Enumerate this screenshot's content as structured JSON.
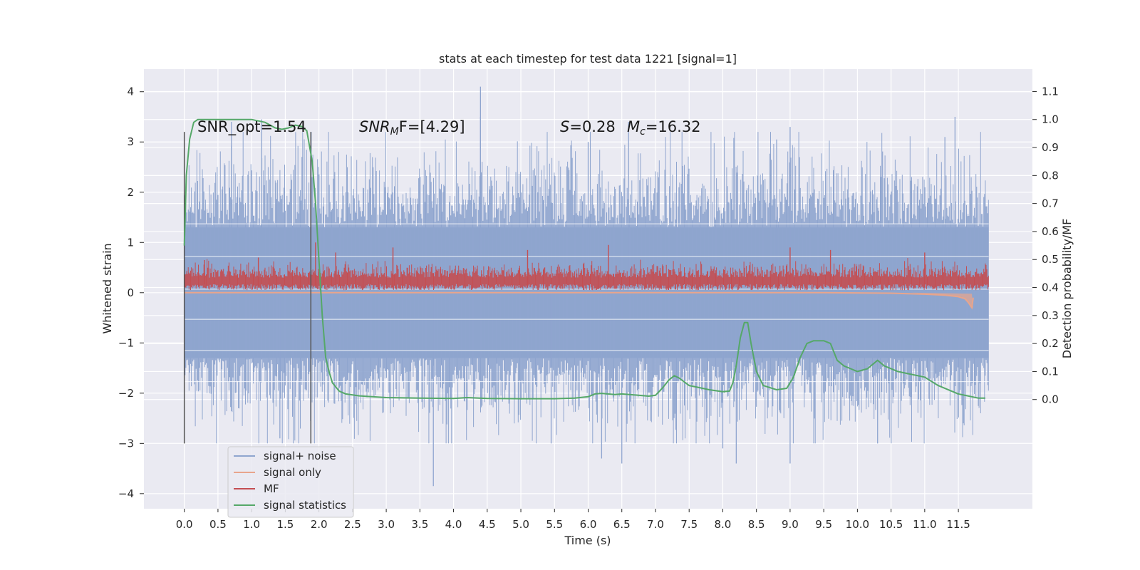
{
  "chart_data": {
    "type": "line",
    "title": "stats at each timestep for test data 1221 [signal=1]",
    "xlabel": "Time (s)",
    "ylabel": "Whitened strain",
    "y2label": "Detection probability/MF",
    "xlim": [
      -0.6,
      12.6
    ],
    "ylim": [
      -4.3,
      4.45
    ],
    "y2lim": [
      -0.39,
      1.18
    ],
    "xticks": [
      0.0,
      0.5,
      1.0,
      1.5,
      2.0,
      2.5,
      3.0,
      3.5,
      4.0,
      4.5,
      5.0,
      5.5,
      6.0,
      6.5,
      7.0,
      7.5,
      8.0,
      8.5,
      9.0,
      9.5,
      10.0,
      10.5,
      11.0,
      11.5
    ],
    "xtick_labels": [
      "0.0",
      "0.5",
      "1.0",
      "1.5",
      "2.0",
      "2.5",
      "3.0",
      "3.5",
      "4.0",
      "4.5",
      "5.0",
      "5.5",
      "6.0",
      "6.5",
      "7.0",
      "7.5",
      "8.0",
      "8.5",
      "9.0",
      "9.5",
      "10.0",
      "10.5",
      "11.0",
      "11.5"
    ],
    "yticks": [
      -4,
      -3,
      -2,
      -1,
      0,
      1,
      2,
      3,
      4
    ],
    "ytick_labels": [
      "−4",
      "−3",
      "−2",
      "−1",
      "0",
      "1",
      "2",
      "3",
      "4"
    ],
    "y2ticks": [
      0.0,
      0.1,
      0.2,
      0.3,
      0.4,
      0.5,
      0.6,
      0.7,
      0.8,
      0.9,
      1.0,
      1.1
    ],
    "y2tick_labels": [
      "0.0",
      "0.1",
      "0.2",
      "0.3",
      "0.4",
      "0.5",
      "0.6",
      "0.7",
      "0.8",
      "0.9",
      "1.0",
      "1.1"
    ],
    "grid": true,
    "legend_placement": "lower-left",
    "annotations": {
      "snr_opt": "SNR_opt=1.54",
      "snr_mf_main": "SNR",
      "snr_mf_sub": "M",
      "snr_mf_rest": "F=[4.29]",
      "s_main": "S",
      "s_rest": "=0.28",
      "mc_main": "M",
      "mc_sub": "c",
      "mc_rest": "=16.32"
    },
    "vlines": [
      0.0,
      1.88
    ],
    "vline_range": [
      -3.0,
      3.2
    ],
    "series": [
      {
        "name": "signal+ noise",
        "color": "#8fa5cf",
        "axis": "left",
        "x_range": [
          0.0,
          11.95
        ],
        "band_typical": [
          -1.3,
          1.3
        ],
        "band_frequent": [
          -2.3,
          2.3
        ],
        "spikes": [
          [
            0.7,
            3.4
          ],
          [
            1.15,
            3.45
          ],
          [
            1.42,
            -2.9
          ],
          [
            3.7,
            -3.85
          ],
          [
            4.4,
            4.1
          ],
          [
            4.4,
            3.5
          ],
          [
            5.45,
            -3.0
          ],
          [
            6.0,
            3.0
          ],
          [
            6.2,
            -3.3
          ],
          [
            6.5,
            -3.4
          ],
          [
            6.6,
            3.4
          ],
          [
            8.0,
            -3.1
          ],
          [
            8.2,
            -3.4
          ],
          [
            8.8,
            3.05
          ],
          [
            9.0,
            3.3
          ],
          [
            9.0,
            -3.4
          ],
          [
            10.3,
            -3.0
          ],
          [
            11.3,
            3.1
          ],
          [
            11.45,
            3.5
          ]
        ]
      },
      {
        "name": "signal only",
        "color": "#e8a58c",
        "axis": "left",
        "x": [
          0.0,
          2.0,
          4.0,
          6.0,
          8.0,
          9.5,
          10.5,
          11.0,
          11.3,
          11.5,
          11.6,
          11.65,
          11.7,
          11.72
        ],
        "y": [
          0.0,
          0.0,
          0.0,
          0.0,
          0.0,
          0.0,
          -0.01,
          -0.03,
          -0.05,
          -0.08,
          -0.12,
          -0.2,
          -0.3,
          -0.1
        ]
      },
      {
        "name": "MF",
        "color": "#c44e52",
        "axis": "left",
        "x_range": [
          0.0,
          11.95
        ],
        "band": [
          0.05,
          0.55
        ],
        "spikes": [
          [
            0.3,
            0.65
          ],
          [
            1.1,
            0.7
          ],
          [
            1.95,
            1.0
          ],
          [
            2.25,
            0.8
          ],
          [
            3.1,
            0.9
          ],
          [
            5.1,
            0.85
          ],
          [
            6.3,
            0.95
          ],
          [
            9.0,
            0.9
          ],
          [
            9.6,
            0.85
          ],
          [
            11.0,
            0.8
          ]
        ]
      },
      {
        "name": "signal statistics",
        "color": "#55a868",
        "axis": "right",
        "x": [
          0.0,
          0.03,
          0.08,
          0.14,
          0.2,
          0.3,
          0.5,
          0.8,
          1.0,
          1.2,
          1.35,
          1.45,
          1.55,
          1.65,
          1.75,
          1.82,
          1.9,
          1.95,
          2.0,
          2.05,
          2.1,
          2.15,
          2.2,
          2.3,
          2.4,
          2.6,
          3.0,
          3.5,
          4.0,
          4.2,
          4.5,
          5.0,
          5.5,
          5.8,
          6.0,
          6.1,
          6.2,
          6.4,
          6.5,
          6.7,
          6.9,
          7.0,
          7.1,
          7.2,
          7.28,
          7.35,
          7.5,
          7.6,
          7.8,
          8.0,
          8.1,
          8.15,
          8.2,
          8.26,
          8.32,
          8.37,
          8.42,
          8.5,
          8.6,
          8.8,
          8.95,
          9.05,
          9.15,
          9.25,
          9.35,
          9.5,
          9.6,
          9.7,
          9.8,
          9.9,
          10.0,
          10.15,
          10.3,
          10.4,
          10.6,
          10.8,
          11.0,
          11.2,
          11.5,
          11.8,
          11.9
        ],
        "y": [
          0.55,
          0.8,
          0.93,
          0.99,
          1.0,
          1.0,
          1.0,
          1.0,
          1.0,
          0.99,
          0.97,
          0.965,
          0.97,
          0.98,
          0.975,
          0.96,
          0.85,
          0.7,
          0.5,
          0.3,
          0.15,
          0.1,
          0.06,
          0.03,
          0.02,
          0.013,
          0.007,
          0.005,
          0.004,
          0.007,
          0.004,
          0.003,
          0.003,
          0.005,
          0.01,
          0.02,
          0.022,
          0.018,
          0.02,
          0.016,
          0.012,
          0.015,
          0.04,
          0.07,
          0.085,
          0.077,
          0.05,
          0.045,
          0.035,
          0.028,
          0.03,
          0.06,
          0.12,
          0.22,
          0.275,
          0.275,
          0.2,
          0.1,
          0.05,
          0.035,
          0.04,
          0.08,
          0.15,
          0.2,
          0.21,
          0.21,
          0.2,
          0.14,
          0.12,
          0.11,
          0.1,
          0.11,
          0.14,
          0.12,
          0.1,
          0.09,
          0.08,
          0.05,
          0.02,
          0.005,
          0.005
        ]
      }
    ]
  }
}
